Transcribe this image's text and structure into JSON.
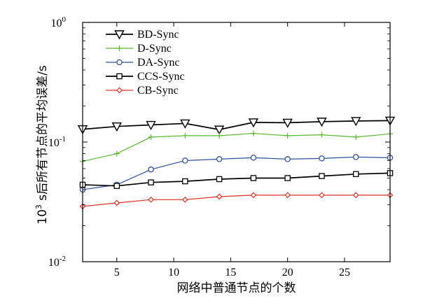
{
  "chart_data": {
    "type": "line",
    "xlabel": "网络中普通节点的个数",
    "ylabel": "10³ s后所有节点的平均误差/s",
    "ylabel_base": "10",
    "ylabel_exp": "3",
    "ylabel_rest": " s后所有节点的平均误差/s",
    "yscale": "log",
    "xlim": [
      2,
      29
    ],
    "ylim": [
      0.01,
      1
    ],
    "xticks": [
      5,
      10,
      15,
      20,
      25
    ],
    "yticks": [
      {
        "value": 1,
        "base": "10",
        "exp": "0"
      },
      {
        "value": 0.1,
        "base": "10",
        "exp": "-1"
      },
      {
        "value": 0.01,
        "base": "10",
        "exp": "-2"
      }
    ],
    "grid": false,
    "legend_position": "top-left",
    "series": [
      {
        "name": "BD-Sync",
        "color": "#000000",
        "marker": "triangle-down",
        "x": [
          2,
          5,
          8,
          11,
          14,
          17,
          20,
          23,
          26,
          29
        ],
        "y": [
          0.128,
          0.135,
          0.139,
          0.143,
          0.127,
          0.146,
          0.145,
          0.148,
          0.15,
          0.151
        ]
      },
      {
        "name": "D-Sync",
        "color": "#5cb82f",
        "marker": "plus",
        "x": [
          2,
          5,
          8,
          11,
          14,
          17,
          20,
          23,
          26,
          29
        ],
        "y": [
          0.069,
          0.08,
          0.11,
          0.113,
          0.113,
          0.118,
          0.113,
          0.115,
          0.11,
          0.117
        ]
      },
      {
        "name": "DA-Sync",
        "color": "#2f4fa0",
        "marker": "circle",
        "x": [
          2,
          5,
          8,
          11,
          14,
          17,
          20,
          23,
          26,
          29
        ],
        "y": [
          0.04,
          0.044,
          0.059,
          0.07,
          0.072,
          0.074,
          0.072,
          0.073,
          0.075,
          0.074
        ]
      },
      {
        "name": "CCS-Sync",
        "color": "#000000",
        "marker": "square",
        "x": [
          2,
          5,
          8,
          11,
          14,
          17,
          20,
          23,
          26,
          29
        ],
        "y": [
          0.044,
          0.043,
          0.046,
          0.047,
          0.049,
          0.05,
          0.05,
          0.052,
          0.054,
          0.055
        ]
      },
      {
        "name": "CB-Sync",
        "color": "#e03020",
        "marker": "diamond",
        "x": [
          2,
          5,
          8,
          11,
          14,
          17,
          20,
          23,
          26,
          29
        ],
        "y": [
          0.029,
          0.031,
          0.033,
          0.033,
          0.035,
          0.036,
          0.036,
          0.036,
          0.036,
          0.036
        ]
      }
    ]
  }
}
